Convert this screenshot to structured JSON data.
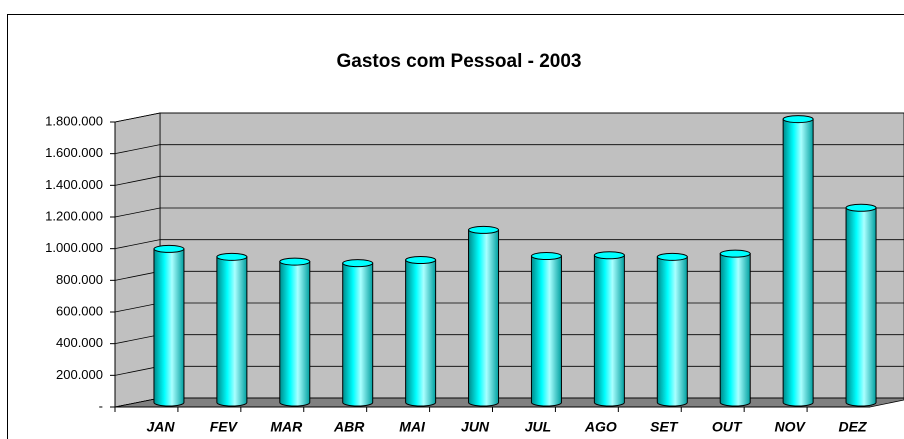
{
  "chart_data": {
    "type": "bar",
    "title": "Gastos com Pessoal - 2003",
    "categories": [
      "JAN",
      "FEV",
      "MAR",
      "ABR",
      "MAI",
      "JUN",
      "JUL",
      "AGO",
      "SET",
      "OUT",
      "NOV",
      "DEZ"
    ],
    "values": [
      970000,
      920000,
      890000,
      880000,
      900000,
      1090000,
      925000,
      930000,
      920000,
      940000,
      1790000,
      1230000
    ],
    "color": "#00ffff",
    "ylim": [
      0,
      1800000
    ],
    "yticks": [
      {
        "value": 0,
        "label": "-"
      },
      {
        "value": 200000,
        "label": "200.000"
      },
      {
        "value": 400000,
        "label": "400.000"
      },
      {
        "value": 600000,
        "label": "600.000"
      },
      {
        "value": 800000,
        "label": "800.000"
      },
      {
        "value": 1000000,
        "label": "1.000.000"
      },
      {
        "value": 1200000,
        "label": "1.200.000"
      },
      {
        "value": 1400000,
        "label": "1.400.000"
      },
      {
        "value": 1600000,
        "label": "1.600.000"
      },
      {
        "value": 1800000,
        "label": "1.800.000"
      }
    ],
    "grid": true
  }
}
